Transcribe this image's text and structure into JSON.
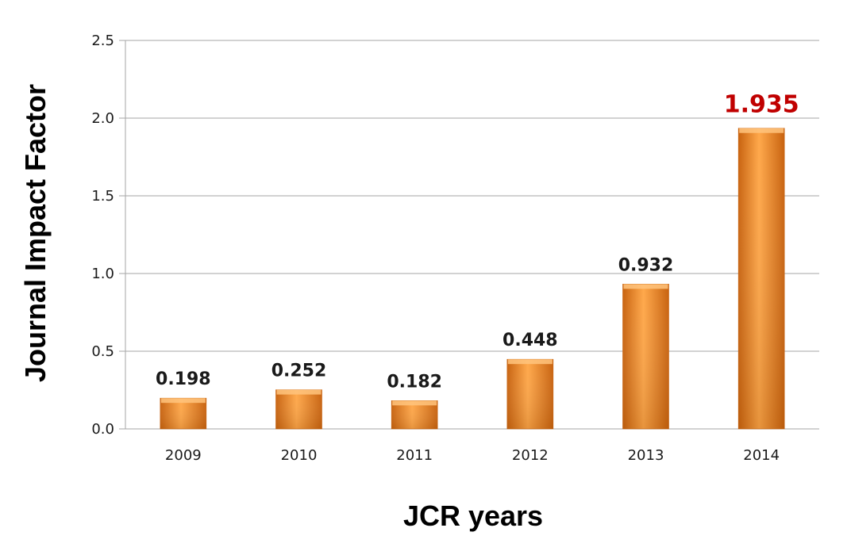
{
  "chart_data": {
    "type": "bar",
    "title": "",
    "xlabel": "JCR years",
    "ylabel": "Journal Impact Factor",
    "categories": [
      "2009",
      "2010",
      "2011",
      "2012",
      "2013",
      "2014"
    ],
    "values": [
      0.198,
      0.252,
      0.182,
      0.448,
      0.932,
      1.935
    ],
    "data_labels": [
      "0.198",
      "0.252",
      "0.182",
      "0.448",
      "0.932",
      "1.935"
    ],
    "highlight_index": 5,
    "ylim": [
      0,
      2.5
    ],
    "yticks": [
      "0.0",
      "0.5",
      "1.0",
      "1.5",
      "2.0",
      "2.5"
    ],
    "grid": true,
    "legend": "none",
    "colors": {
      "bar_light": "#ffa84a",
      "bar_mid": "#f5891f",
      "bar_dark": "#c8620e",
      "bar_top": "#ffc47e",
      "highlight_label": "#c00000",
      "gridline": "#a6a6a6"
    }
  }
}
